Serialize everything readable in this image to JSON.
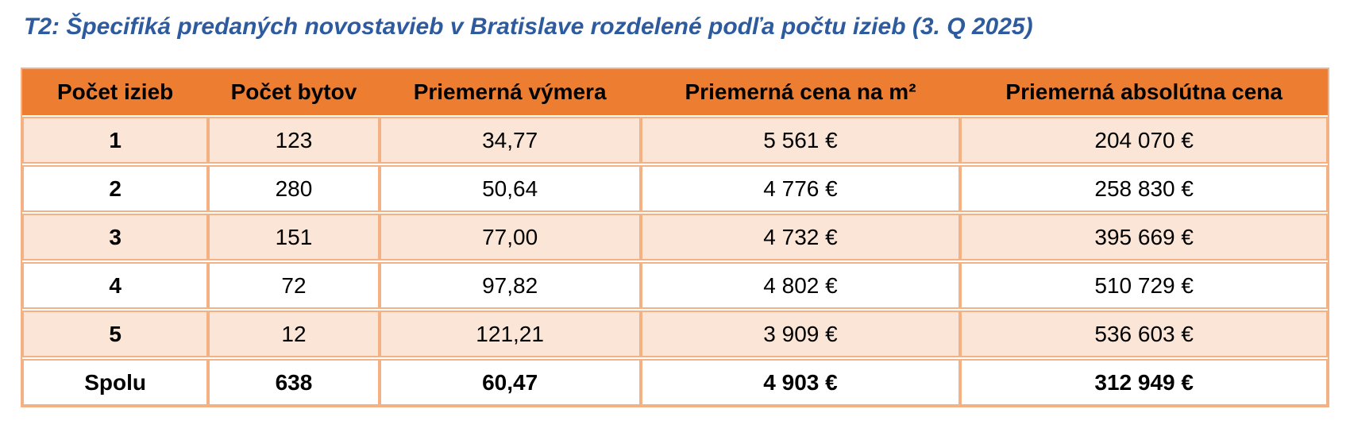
{
  "title": "T2: Špecifiká predaných novostavieb v Bratislave rozdelené podľa počtu izieb (3. Q 2025)",
  "table": {
    "columns": [
      "Počet izieb",
      "Počet bytov",
      "Priemerná výmera",
      "Priemerná cena na m²",
      "Priemerná absolútna cena"
    ],
    "rows": [
      {
        "cells": [
          "1",
          "123",
          "34,77",
          "5 561 €",
          "204 070 €"
        ]
      },
      {
        "cells": [
          "2",
          "280",
          "50,64",
          "4 776 €",
          "258 830 €"
        ]
      },
      {
        "cells": [
          "3",
          "151",
          "77,00",
          "4 732 €",
          "395 669 €"
        ]
      },
      {
        "cells": [
          "4",
          "72",
          "97,82",
          "4 802 €",
          "510 729 €"
        ]
      },
      {
        "cells": [
          "5",
          "12",
          "121,21",
          "3 909 €",
          "536 603 €"
        ]
      }
    ],
    "total_row": {
      "cells": [
        "Spolu",
        "638",
        "60,47",
        "4 903 €",
        "312 949 €"
      ]
    }
  },
  "colors": {
    "header_bg": "#ED7D31",
    "shaded_row_bg": "#FBE5D6",
    "border": "#F4B183",
    "title_text": "#2D5B9E",
    "cell_text": "#000000"
  }
}
